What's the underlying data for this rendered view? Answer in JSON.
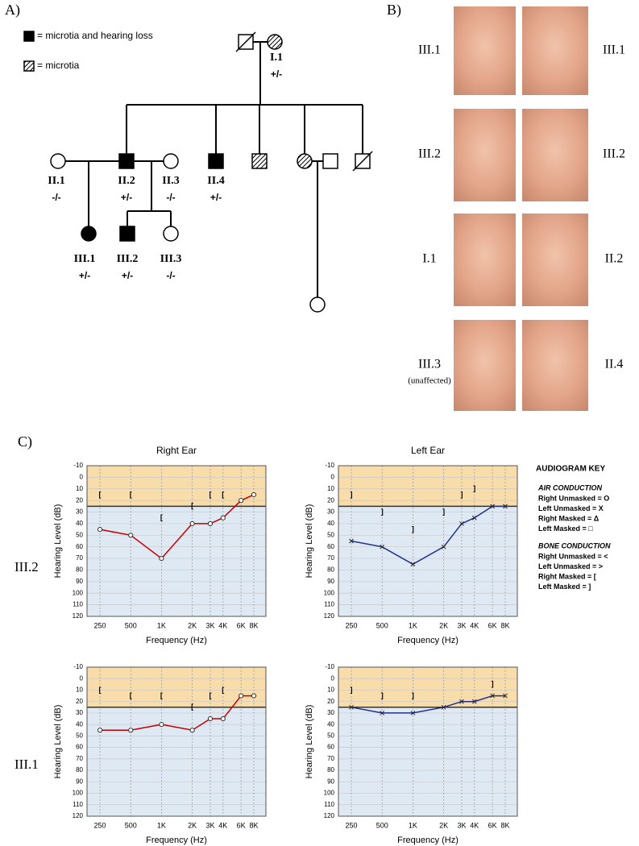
{
  "panel_labels": [
    "A)",
    "B)",
    "C)"
  ],
  "pedigree": {
    "legend": [
      {
        "label": "= microtia and hearing loss",
        "fill": "solid"
      },
      {
        "label": "= microtia",
        "fill": "hatched"
      }
    ],
    "nodes": [
      {
        "shape": "square",
        "fill": "deceased"
      },
      {
        "shape": "circle",
        "fill": "hatched",
        "label": "I.1",
        "genotype": "+/-"
      },
      {
        "shape": "circle",
        "fill": "open",
        "label": "II.1",
        "genotype": "-/-"
      },
      {
        "shape": "square",
        "fill": "solid",
        "label": "II.2",
        "genotype": "+/-"
      },
      {
        "shape": "circle",
        "fill": "open",
        "label": "II.3",
        "genotype": "-/-"
      },
      {
        "shape": "square",
        "fill": "solid",
        "label": "II.4",
        "genotype": "+/-"
      },
      {
        "shape": "square",
        "fill": "hatched"
      },
      {
        "shape": "circle",
        "fill": "hatched"
      },
      {
        "shape": "square",
        "fill": "open"
      },
      {
        "shape": "square",
        "fill": "deceased"
      },
      {
        "shape": "circle",
        "fill": "solid",
        "label": "III.1",
        "genotype": "+/-"
      },
      {
        "shape": "square",
        "fill": "solid",
        "label": "III.2",
        "genotype": "+/-"
      },
      {
        "shape": "circle",
        "fill": "open",
        "label": "III.3",
        "genotype": "-/-"
      },
      {
        "shape": "circle",
        "fill": "open"
      }
    ]
  },
  "photos": {
    "left": [
      {
        "label": "III.1"
      },
      {
        "label": "III.2"
      },
      {
        "label": "I.1"
      },
      {
        "label": "III.3",
        "note": "(unaffected)"
      }
    ],
    "right": [
      {
        "label": "III.1"
      },
      {
        "label": "III.2"
      },
      {
        "label": "II.2"
      },
      {
        "label": "II.4"
      }
    ]
  },
  "audiograms": {
    "row_labels": [
      "III.2",
      "III.1"
    ],
    "key": {
      "title": "AUDIOGRAM KEY",
      "sections": [
        {
          "heading": "AIR CONDUCTION",
          "items": [
            "Right Unmasked = O",
            "Left Unmasked = X",
            "Right Masked = Δ",
            "Left Masked = □"
          ]
        },
        {
          "heading": "BONE CONDUCTION",
          "items": [
            "Right Unmasked = <",
            "Left Unmasked = >",
            "Right Masked = [",
            "Left Masked = ]"
          ]
        }
      ]
    },
    "charts": [
      {
        "type": "line",
        "title": "Right Ear",
        "xlabel": "Frequency (Hz)",
        "ylabel": "Hearing Level (dB)",
        "xlog": true,
        "xlim": [
          187,
          10500
        ],
        "xticks": [
          250,
          500,
          {
            "value": 1000,
            "label": "1K"
          },
          {
            "value": 2000,
            "label": "2K"
          },
          {
            "value": 3000,
            "label": "3K"
          },
          {
            "value": 4000,
            "label": "4K"
          },
          {
            "value": 6000,
            "label": "6K"
          },
          {
            "value": 8000,
            "label": "8K"
          }
        ],
        "ylim": [
          -10,
          120
        ],
        "yinvert": true,
        "yticks": [
          -10,
          0,
          10,
          20,
          30,
          40,
          50,
          60,
          70,
          80,
          90,
          100,
          110,
          120
        ],
        "threshold": 25,
        "grid": true,
        "series": [
          {
            "marker": "o",
            "color": "#c00000",
            "x": [
              250,
              500,
              1000,
              2000,
              3000,
              4000,
              6000,
              8000
            ],
            "values": [
              45,
              50,
              70,
              40,
              40,
              35,
              20,
              15
            ]
          },
          {
            "marker": "[",
            "color": "#000000",
            "line": false,
            "x": [
              250,
              500,
              1000,
              2000,
              3000,
              4000
            ],
            "values": [
              15,
              15,
              35,
              25,
              15,
              15
            ]
          }
        ]
      },
      {
        "type": "line",
        "title": "Left Ear",
        "xlabel": "Frequency (Hz)",
        "ylabel": "Hearing Level (dB)",
        "xlog": true,
        "xlim": [
          187,
          10500
        ],
        "xticks": [
          250,
          500,
          {
            "value": 1000,
            "label": "1K"
          },
          {
            "value": 2000,
            "label": "2K"
          },
          {
            "value": 3000,
            "label": "3K"
          },
          {
            "value": 4000,
            "label": "4K"
          },
          {
            "value": 6000,
            "label": "6K"
          },
          {
            "value": 8000,
            "label": "8K"
          }
        ],
        "ylim": [
          -10,
          120
        ],
        "yinvert": true,
        "yticks": [
          -10,
          0,
          10,
          20,
          30,
          40,
          50,
          60,
          70,
          80,
          90,
          100,
          110,
          120
        ],
        "threshold": 25,
        "grid": true,
        "series": [
          {
            "marker": "x",
            "color": "#1f2f8f",
            "x": [
              250,
              500,
              1000,
              2000,
              3000,
              4000,
              6000,
              8000
            ],
            "values": [
              55,
              60,
              75,
              60,
              40,
              35,
              25,
              25
            ]
          },
          {
            "marker": "]",
            "color": "#000000",
            "line": false,
            "x": [
              250,
              500,
              1000,
              2000,
              3000,
              4000
            ],
            "values": [
              15,
              30,
              45,
              30,
              15,
              10
            ]
          }
        ]
      },
      {
        "type": "line",
        "xlabel": "Frequency (Hz)",
        "ylabel": "Hearing Level (dB)",
        "xlog": true,
        "xlim": [
          187,
          10500
        ],
        "xticks": [
          250,
          500,
          {
            "value": 1000,
            "label": "1K"
          },
          {
            "value": 2000,
            "label": "2K"
          },
          {
            "value": 3000,
            "label": "3K"
          },
          {
            "value": 4000,
            "label": "4K"
          },
          {
            "value": 6000,
            "label": "6K"
          },
          {
            "value": 8000,
            "label": "8K"
          }
        ],
        "ylim": [
          -10,
          120
        ],
        "yinvert": true,
        "yticks": [
          -10,
          0,
          10,
          20,
          30,
          40,
          50,
          60,
          70,
          80,
          90,
          100,
          110,
          120
        ],
        "threshold": 25,
        "grid": true,
        "series": [
          {
            "marker": "o",
            "color": "#c00000",
            "x": [
              250,
              500,
              1000,
              2000,
              3000,
              4000,
              6000,
              8000
            ],
            "values": [
              45,
              45,
              40,
              45,
              35,
              35,
              15,
              15
            ]
          },
          {
            "marker": "[",
            "color": "#000000",
            "line": false,
            "x": [
              250,
              500,
              1000,
              2000,
              3000,
              4000
            ],
            "values": [
              10,
              15,
              15,
              25,
              15,
              10
            ]
          }
        ]
      },
      {
        "type": "line",
        "xlabel": "Frequency (Hz)",
        "ylabel": "Hearing Level (dB)",
        "xlog": true,
        "xlim": [
          187,
          10500
        ],
        "xticks": [
          250,
          500,
          {
            "value": 1000,
            "label": "1K"
          },
          {
            "value": 2000,
            "label": "2K"
          },
          {
            "value": 3000,
            "label": "3K"
          },
          {
            "value": 4000,
            "label": "4K"
          },
          {
            "value": 6000,
            "label": "6K"
          },
          {
            "value": 8000,
            "label": "8K"
          }
        ],
        "ylim": [
          -10,
          120
        ],
        "yinvert": true,
        "yticks": [
          -10,
          0,
          10,
          20,
          30,
          40,
          50,
          60,
          70,
          80,
          90,
          100,
          110,
          120
        ],
        "threshold": 25,
        "grid": true,
        "series": [
          {
            "marker": "x",
            "color": "#1f2f8f",
            "x": [
              250,
              500,
              1000,
              2000,
              3000,
              4000,
              6000,
              8000
            ],
            "values": [
              25,
              30,
              30,
              25,
              20,
              20,
              15,
              15
            ]
          },
          {
            "marker": "]",
            "color": "#000000",
            "line": false,
            "x": [
              250,
              500,
              1000,
              6000
            ],
            "values": [
              10,
              15,
              15,
              5
            ]
          }
        ]
      }
    ]
  }
}
